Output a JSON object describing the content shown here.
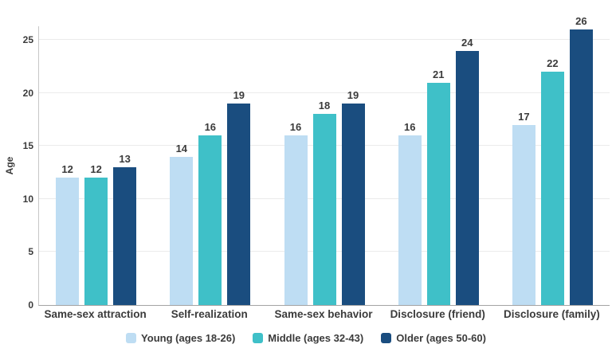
{
  "chart_data": {
    "type": "bar",
    "ylabel": "Age",
    "xlabel": "",
    "categories": [
      "Same-sex attraction",
      "Self-realization",
      "Same-sex behavior",
      "Disclosure (friend)",
      "Disclosure (family)"
    ],
    "series": [
      {
        "name": "Young (ages 18-26)",
        "color": "#BEDDF3",
        "values": [
          12,
          14,
          16,
          16,
          17
        ]
      },
      {
        "name": "Middle (ages 32-43)",
        "color": "#3FC0C8",
        "values": [
          12,
          16,
          18,
          21,
          22
        ]
      },
      {
        "name": "Older (ages 50-60)",
        "color": "#1A4D7F",
        "values": [
          13,
          19,
          19,
          24,
          26
        ]
      }
    ],
    "ylim": [
      0,
      26.3
    ],
    "yticks": [
      0,
      5,
      10,
      15,
      20,
      25
    ],
    "grid": true,
    "value_labels": true,
    "legend_position": "bottom"
  }
}
